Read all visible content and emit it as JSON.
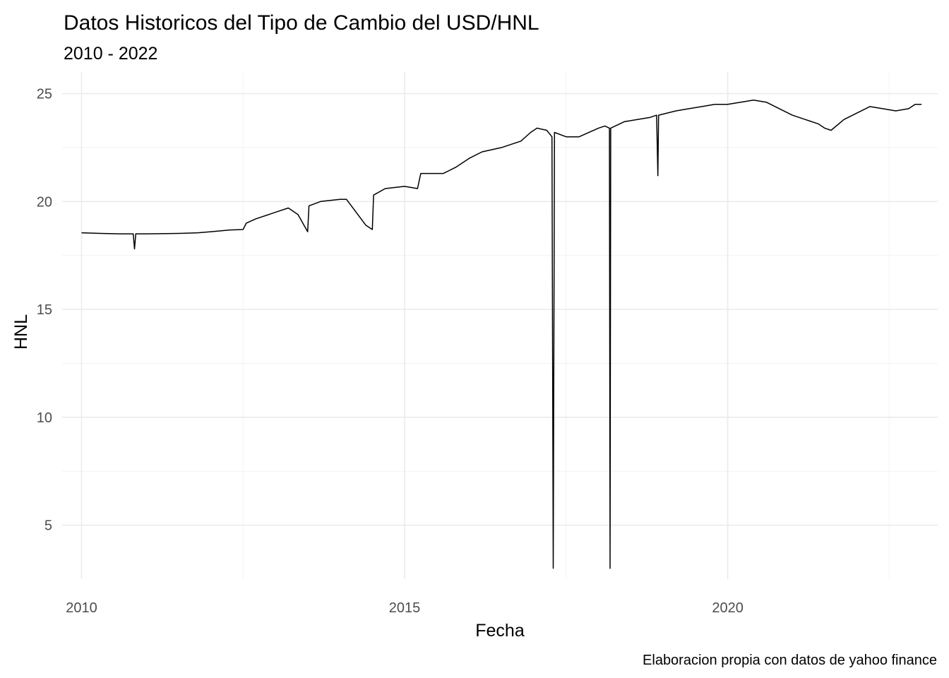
{
  "chart_data": {
    "type": "line",
    "title": "Datos Historicos del Tipo de Cambio del USD/HNL",
    "subtitle": "2010 - 2022",
    "xlabel": "Fecha",
    "ylabel": "HNL",
    "caption": "Elaboracion propia con datos de yahoo finance",
    "xlim": [
      2009.7,
      2023.25
    ],
    "ylim": [
      2.5,
      26.0
    ],
    "x_ticks": [
      {
        "value": 2010,
        "label": "2010"
      },
      {
        "value": 2015,
        "label": "2015"
      },
      {
        "value": 2020,
        "label": "2020"
      }
    ],
    "y_ticks": [
      {
        "value": 5,
        "label": "5"
      },
      {
        "value": 10,
        "label": "10"
      },
      {
        "value": 15,
        "label": "15"
      },
      {
        "value": 20,
        "label": "20"
      },
      {
        "value": 25,
        "label": "25"
      }
    ],
    "x_minor_ticks": [
      2012.5,
      2017.5,
      2022.5
    ],
    "y_minor_ticks": [
      7.5,
      12.5,
      17.5,
      22.5
    ],
    "grid": true,
    "series": [
      {
        "values": [
          [
            2010.0,
            18.55
          ],
          [
            2010.3,
            18.52
          ],
          [
            2010.6,
            18.5
          ],
          [
            2010.8,
            18.5
          ],
          [
            2010.82,
            17.8
          ],
          [
            2010.84,
            18.5
          ],
          [
            2011.0,
            18.5
          ],
          [
            2011.5,
            18.52
          ],
          [
            2011.8,
            18.55
          ],
          [
            2012.0,
            18.6
          ],
          [
            2012.3,
            18.68
          ],
          [
            2012.5,
            18.7
          ],
          [
            2012.55,
            19.0
          ],
          [
            2012.7,
            19.2
          ],
          [
            2013.0,
            19.5
          ],
          [
            2013.2,
            19.7
          ],
          [
            2013.35,
            19.4
          ],
          [
            2013.5,
            18.6
          ],
          [
            2013.52,
            19.8
          ],
          [
            2013.7,
            20.0
          ],
          [
            2014.0,
            20.1
          ],
          [
            2014.1,
            20.1
          ],
          [
            2014.25,
            19.5
          ],
          [
            2014.4,
            18.9
          ],
          [
            2014.5,
            18.7
          ],
          [
            2014.52,
            20.3
          ],
          [
            2014.7,
            20.6
          ],
          [
            2015.0,
            20.7
          ],
          [
            2015.2,
            20.6
          ],
          [
            2015.25,
            21.3
          ],
          [
            2015.6,
            21.3
          ],
          [
            2015.8,
            21.6
          ],
          [
            2016.0,
            22.0
          ],
          [
            2016.2,
            22.3
          ],
          [
            2016.5,
            22.5
          ],
          [
            2016.8,
            22.8
          ],
          [
            2016.95,
            23.2
          ],
          [
            2017.05,
            23.4
          ],
          [
            2017.2,
            23.3
          ],
          [
            2017.28,
            23.0
          ],
          [
            2017.3,
            3.0
          ],
          [
            2017.32,
            23.2
          ],
          [
            2017.5,
            23.0
          ],
          [
            2017.7,
            23.0
          ],
          [
            2018.0,
            23.4
          ],
          [
            2018.1,
            23.5
          ],
          [
            2018.17,
            23.4
          ],
          [
            2018.18,
            3.0
          ],
          [
            2018.19,
            23.4
          ],
          [
            2018.4,
            23.7
          ],
          [
            2018.6,
            23.8
          ],
          [
            2018.8,
            23.9
          ],
          [
            2018.9,
            24.0
          ],
          [
            2018.92,
            21.2
          ],
          [
            2018.93,
            24.0
          ],
          [
            2019.2,
            24.2
          ],
          [
            2019.4,
            24.3
          ],
          [
            2019.6,
            24.4
          ],
          [
            2019.8,
            24.5
          ],
          [
            2020.0,
            24.5
          ],
          [
            2020.2,
            24.6
          ],
          [
            2020.4,
            24.7
          ],
          [
            2020.6,
            24.6
          ],
          [
            2020.8,
            24.3
          ],
          [
            2021.0,
            24.0
          ],
          [
            2021.2,
            23.8
          ],
          [
            2021.4,
            23.6
          ],
          [
            2021.5,
            23.4
          ],
          [
            2021.6,
            23.3
          ],
          [
            2021.8,
            23.8
          ],
          [
            2022.0,
            24.1
          ],
          [
            2022.2,
            24.4
          ],
          [
            2022.4,
            24.3
          ],
          [
            2022.6,
            24.2
          ],
          [
            2022.8,
            24.3
          ],
          [
            2022.9,
            24.5
          ],
          [
            2023.0,
            24.5
          ]
        ]
      }
    ]
  }
}
